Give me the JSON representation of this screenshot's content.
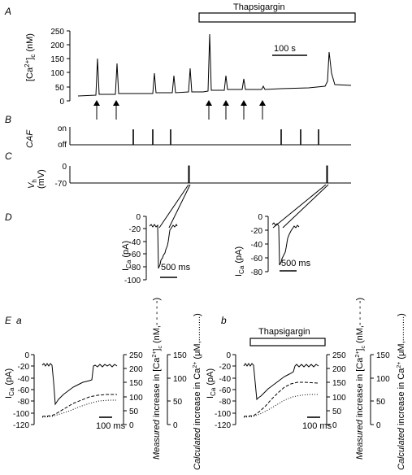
{
  "panel_labels": {
    "a": "A",
    "b": "B",
    "c": "C",
    "d": "D",
    "e": "E",
    "ea": "a",
    "eb": "b"
  },
  "drug": "Thapsigargin",
  "panelA": {
    "ylabel_main": "[Ca",
    "ylabel_sup": "2+",
    "ylabel_close": "]",
    "ylabel_sub": "c",
    "ylabel_unit": " (nM)",
    "yticks": [
      "0",
      "50",
      "100",
      "150",
      "200",
      "250"
    ],
    "scalebar": "100 s"
  },
  "panelB": {
    "ylabel": "CAF",
    "on": "on",
    "off": "off"
  },
  "panelC": {
    "ylabel_main": "V",
    "ylabel_sub": "h",
    "ylabel_unit": "(mV)",
    "yticks": [
      "0",
      "-70"
    ]
  },
  "panelD": {
    "ylabel_main": "I",
    "ylabel_sub": "Ca",
    "ylabel_unit": " (pA)",
    "yticks_left": [
      "0",
      "-20",
      "-40",
      "-60",
      "-80",
      "-100"
    ],
    "yticks_right": [
      "0",
      "-20",
      "-40",
      "-60",
      "-80"
    ],
    "scalebar": "500 ms"
  },
  "panelE": {
    "yticks_left": [
      "0",
      "-20",
      "-40",
      "-60",
      "-80",
      "-100",
      "-120"
    ],
    "yticks_measured": [
      "0",
      "50",
      "100",
      "150",
      "200",
      "250"
    ],
    "yticks_calc": [
      "0",
      "50",
      "100",
      "150"
    ],
    "measured_label": {
      "it": "Measured",
      "main": " increase in [Ca",
      "sup": "2+",
      "close": "]",
      "sub": "c",
      "unit": " (nM,- - - - -)"
    },
    "calc_label": {
      "it": "Calculated",
      "main": " increase in Ca",
      "sup": "2+",
      "unit": " (μM,..........)"
    },
    "scalebar": "100 ms"
  }
}
